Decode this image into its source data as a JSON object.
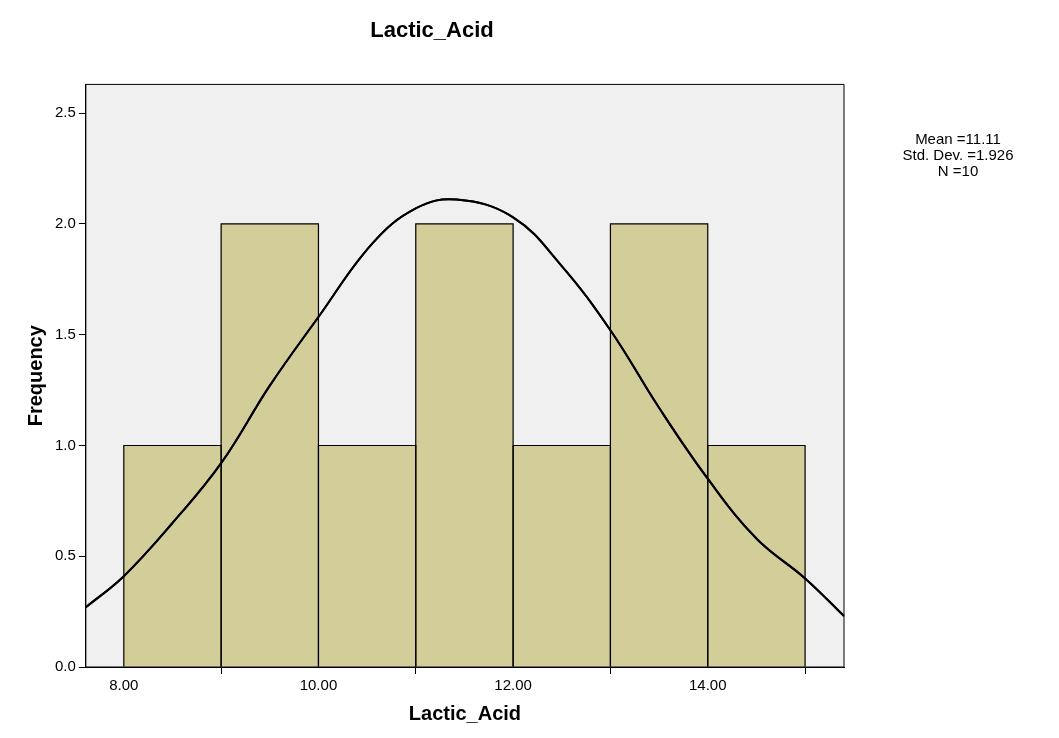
{
  "chart_data": {
    "type": "histogram",
    "title": "Lactic_Acid",
    "xlabel": "Lactic_Acid",
    "ylabel": "Frequency",
    "series": [
      {
        "bins": [
          8,
          9,
          10,
          11,
          12,
          13,
          14,
          15
        ],
        "values": [
          1,
          2,
          1,
          2,
          1,
          2,
          1
        ],
        "color": "#d3ce99"
      },
      {
        "type": "line",
        "x": [
          7.61,
          8.0,
          8.5,
          9.0,
          9.5,
          10.0,
          10.55,
          11.0,
          11.42,
          12.0,
          12.5,
          13.0,
          13.5,
          14.0,
          14.5,
          15.0,
          15.4
        ],
        "values": [
          0.27,
          0.41,
          0.65,
          0.92,
          1.27,
          1.58,
          1.91,
          2.07,
          2.11,
          2.03,
          1.81,
          1.52,
          1.17,
          0.85,
          0.58,
          0.4,
          0.23
        ],
        "color": "#000000"
      }
    ],
    "xlim": [
      7.61,
      15.4
    ],
    "xticks": [
      {
        "value": 8,
        "label": "8.00"
      },
      {
        "value": 10,
        "label": "10.00"
      },
      {
        "value": 12,
        "label": "12.00"
      },
      {
        "value": 14,
        "label": "14.00"
      }
    ],
    "ylim": [
      0,
      2.63
    ],
    "yticks": [
      {
        "value": 0,
        "label": "0.0"
      },
      {
        "value": 0.5,
        "label": "0.5"
      },
      {
        "value": 1,
        "label": "1.0"
      },
      {
        "value": 1.5,
        "label": "1.5"
      },
      {
        "value": 2,
        "label": "2.0"
      },
      {
        "value": 2.5,
        "label": "2.5"
      }
    ],
    "grid": false,
    "legend": false,
    "marker": "none",
    "annotations": [
      "Mean =11.11",
      "Std. Dev. =1.926",
      "N =10"
    ]
  }
}
